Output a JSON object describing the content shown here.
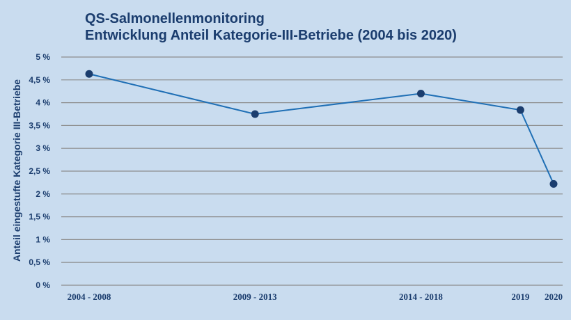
{
  "chart_data": {
    "type": "line",
    "title": "QS-Salmonellenmonitoring",
    "subtitle": "Entwicklung Anteil Kategorie-III-Betriebe (2004 bis 2020)",
    "xlabel": "",
    "ylabel": "Anteil eingestufte Kategorie III-Betriebe",
    "categories": [
      "2004 - 2008",
      "2009 - 2013",
      "2014 - 2018",
      "2019",
      "2020"
    ],
    "x_positions": [
      2006,
      2011,
      2016,
      2019,
      2020
    ],
    "series": [
      {
        "values": [
          4.63,
          3.75,
          4.2,
          3.84,
          2.22
        ]
      }
    ],
    "ylim": [
      0,
      5
    ],
    "yticks": [
      {
        "value": 0,
        "label": "0 %"
      },
      {
        "value": 0.5,
        "label": "0,5 %"
      },
      {
        "value": 1,
        "label": "1 %"
      },
      {
        "value": 1.5,
        "label": "1,5 %"
      },
      {
        "value": 2,
        "label": "2 %"
      },
      {
        "value": 2.5,
        "label": "2,5 %"
      },
      {
        "value": 3,
        "label": "3 %"
      },
      {
        "value": 3.5,
        "label": "3,5 %"
      },
      {
        "value": 4,
        "label": "4 %"
      },
      {
        "value": 4.5,
        "label": "4,5 %"
      },
      {
        "value": 5,
        "label": "5 %"
      }
    ],
    "grid": true,
    "colors": {
      "line": "#1f6fb5",
      "marker": "#1b3d6e",
      "grid": "#8d8d8d",
      "text": "#1b3d6e",
      "background": "#c9dcef"
    }
  }
}
